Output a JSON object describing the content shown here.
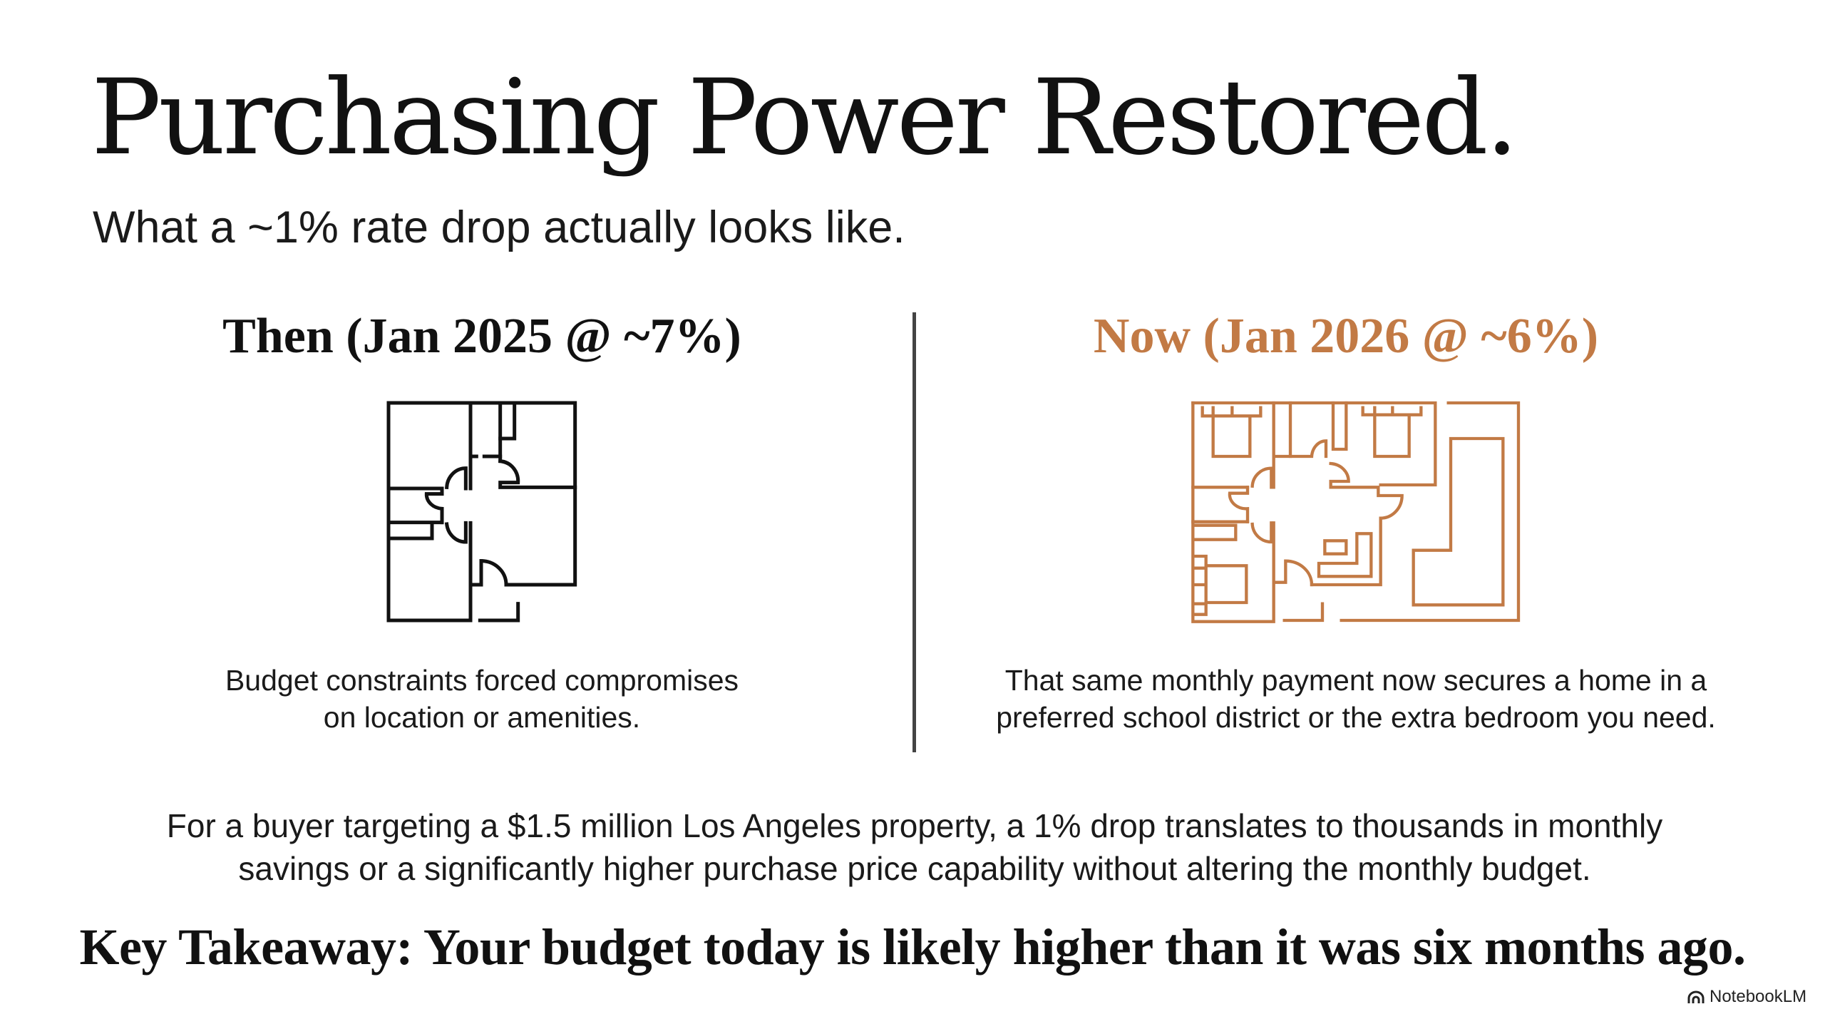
{
  "title": "Purchasing Power Restored.",
  "subtitle": "What a ~1% rate drop actually looks like.",
  "then": {
    "heading": "Then (Jan 2025 @ ~7%)",
    "caption_lines": [
      "Budget constraints forced compromises",
      "on location or amenities."
    ],
    "icon": "small-floor-plan-icon",
    "color": "#111111"
  },
  "now": {
    "heading": "Now (Jan 2026 @ ~6%)",
    "caption_lines": [
      "That same monthly payment now secures a home in a",
      "preferred school district or the extra bedroom you need."
    ],
    "icon": "large-floor-plan-icon",
    "color": "#C27A45"
  },
  "body_lines": [
    "For a buyer targeting a $1.5 million Los Angeles property, a 1% drop translates to thousands in monthly",
    "savings or a significantly higher purchase price capability without altering the monthly budget."
  ],
  "takeaway": "Key Takeaway: Your budget today is likely higher than it was six months ago.",
  "brand": {
    "label": "NotebookLM",
    "icon": "notebooklm-logo-icon"
  }
}
